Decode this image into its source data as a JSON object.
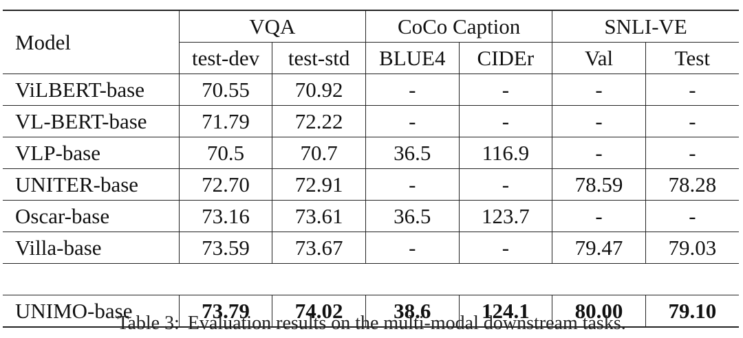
{
  "table": {
    "header": {
      "model": "Model",
      "groups": [
        {
          "label": "VQA",
          "subs": [
            "test-dev",
            "test-std"
          ]
        },
        {
          "label": "CoCo Caption",
          "subs": [
            "BLUE4",
            "CIDEr"
          ]
        },
        {
          "label": "SNLI-VE",
          "subs": [
            "Val",
            "Test"
          ]
        }
      ]
    },
    "rows": [
      {
        "model": "ViLBERT-base",
        "values": [
          "70.55",
          "70.92",
          "-",
          "-",
          "-",
          "-"
        ]
      },
      {
        "model": "VL-BERT-base",
        "values": [
          "71.79",
          "72.22",
          "-",
          "-",
          "-",
          "-"
        ]
      },
      {
        "model": "VLP-base",
        "values": [
          "70.5",
          "70.7",
          "36.5",
          "116.9",
          "-",
          "-"
        ]
      },
      {
        "model": "UNITER-base",
        "values": [
          "72.70",
          "72.91",
          "-",
          "-",
          "78.59",
          "78.28"
        ]
      },
      {
        "model": "Oscar-base",
        "values": [
          "73.16",
          "73.61",
          "36.5",
          "123.7",
          "-",
          "-"
        ]
      },
      {
        "model": "Villa-base",
        "values": [
          "73.59",
          "73.67",
          "-",
          "-",
          "79.47",
          "79.03"
        ]
      }
    ],
    "final_row": {
      "model": "UNIMO-base",
      "values": [
        "73.79",
        "74.02",
        "38.6",
        "124.1",
        "80.00",
        "79.10"
      ]
    }
  },
  "caption": {
    "label": "Table 3:",
    "text": "Evaluation results on the multi-modal downstream tasks."
  }
}
